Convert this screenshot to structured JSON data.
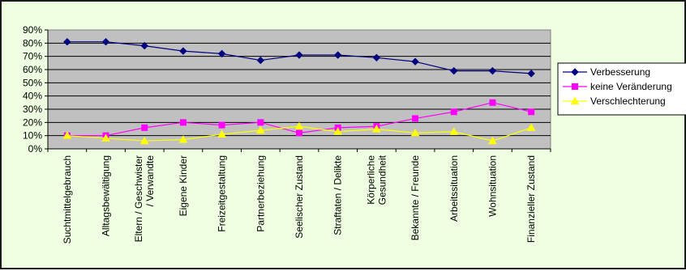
{
  "chart_data": {
    "type": "line",
    "title": "",
    "xlabel": "",
    "ylabel": "",
    "ylim": [
      0,
      90
    ],
    "ytick_step": 10,
    "yticks": [
      "0%",
      "10%",
      "20%",
      "30%",
      "40%",
      "50%",
      "60%",
      "70%",
      "80%",
      "90%"
    ],
    "y_unit": "%",
    "grid": true,
    "legend_position": "right",
    "categories": [
      "Suchtmittelgebrauch",
      "Alltagsbewältigung",
      "Eltern / Geschwister / Verwandte",
      "Eigene Kinder",
      "Freizeitgestaltung",
      "Partnerbeziehung",
      "Seelischer Zustand",
      "Straftaten / Delikte",
      "Körperliche Gesundheit",
      "Bekannte / Freunde",
      "Arbeitssituation",
      "Wohnsituation",
      "Finanzieller Zustand"
    ],
    "category_lines": [
      [
        "Suchtmittelgebrauch"
      ],
      [
        "Alltagsbewältigung"
      ],
      [
        "Eltern / Geschwister",
        "/ Verwandte"
      ],
      [
        "Eigene Kinder"
      ],
      [
        "Freizeitgestaltung"
      ],
      [
        "Partnerbeziehung"
      ],
      [
        "Seelischer Zustand"
      ],
      [
        "Straftaten / Delikte"
      ],
      [
        "Körperliche",
        "Gesundheit"
      ],
      [
        "Bekannte / Freunde"
      ],
      [
        "Arbeitssituation"
      ],
      [
        "Wohnsituation"
      ],
      [
        "Finanzieller Zustand"
      ]
    ],
    "series": [
      {
        "name": "Verbesserung",
        "color": "#000080",
        "marker": "diamond",
        "values": [
          81,
          81,
          78,
          74,
          72,
          67,
          71,
          71,
          69,
          66,
          59,
          59,
          57
        ]
      },
      {
        "name": "keine Veränderung",
        "color": "#ff00ff",
        "marker": "square",
        "values": [
          10,
          10,
          16,
          20,
          18,
          20,
          12,
          16,
          17,
          23,
          28,
          35,
          28
        ]
      },
      {
        "name": "Verschlechterung",
        "color": "#ffff00",
        "marker": "triangle",
        "values": [
          10,
          8,
          6,
          7,
          11,
          14,
          17,
          13,
          15,
          12,
          13,
          6,
          16
        ]
      }
    ]
  }
}
